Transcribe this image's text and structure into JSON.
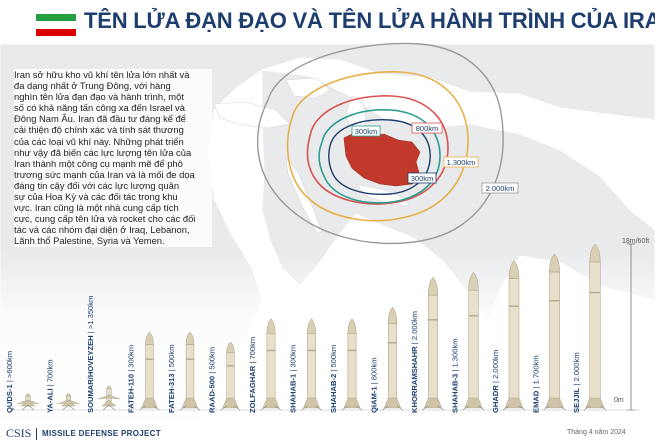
{
  "header": {
    "title": "TÊN LỬA ĐẠN ĐẠO VÀ TÊN LỬA HÀNH TRÌNH CỦA IRAN",
    "flag": [
      "#239f40",
      "#ffffff",
      "#da0000"
    ]
  },
  "intro_lines": [
    "Iran sở hữu kho vũ khí tên lửa lớn nhất và",
    "đa dạng nhất ở Trung Đông, với hàng",
    "nghìn tên lửa đạn đạo và hành trình, một",
    "số có khả năng tấn công xa đến Israel và",
    "Đông Nam Âu. Iran đã đầu tư đáng kể để",
    "cải thiện độ chính xác và tính sát thương",
    "của các loại vũ khí này. Những phát triển",
    "như vậy đã biến các lực lượng tên lửa của",
    "Iran thành một công cụ mạnh mẽ để phô",
    "trương sức mạnh của Iran và là mối đe dọa",
    "đáng tin cậy đối với các lực lượng quân",
    "sự của Hoa Kỳ và các đối tác trong khu",
    "vực. Iran cũng là một nhà cung cấp tích",
    "cực, cung cấp tên lửa và rocket cho các đối",
    "tác và các nhóm đại diện ở Iraq, Lebanon,",
    "Lãnh thổ Palestine, Syria và Yemen."
  ],
  "map": {
    "rings": [
      {
        "label": "300km",
        "color": "#2a9d8f"
      },
      {
        "label": "800km",
        "color": "#d9534f"
      },
      {
        "label": "1.300km",
        "color": "#e8b04a"
      },
      {
        "label": "2.000km",
        "color": "#9a9a9a"
      }
    ],
    "inner_label": "300km",
    "iran_color": "#c0392b"
  },
  "missiles": [
    {
      "name": "QUDS-1",
      "range": ">600km",
      "h": 0.055
    },
    {
      "name": "YA-ALI",
      "range": "700km",
      "h": 0.035
    },
    {
      "name": "SOUMAR/HOVEYZEH",
      "range": ">1.350km",
      "h": 0.13
    },
    {
      "name": "FATEH-110",
      "range": "300km",
      "h": 0.47
    },
    {
      "name": "FATEH-313",
      "range": "500km",
      "h": 0.47
    },
    {
      "name": "RAAD-500",
      "range": "500km",
      "h": 0.41
    },
    {
      "name": "ZOLFAGHAR",
      "range": "700km",
      "h": 0.55
    },
    {
      "name": "SHAHAB-1",
      "range": "300km",
      "h": 0.55
    },
    {
      "name": "SHAHAB-2",
      "range": "500km",
      "h": 0.55
    },
    {
      "name": "QIAM-1",
      "range": "800km",
      "h": 0.62
    },
    {
      "name": "KHORRAMSHAHR",
      "range": "2.000km",
      "h": 0.8
    },
    {
      "name": "SHAHAB-3",
      "range": "1.300km",
      "h": 0.83
    },
    {
      "name": "GHADR",
      "range": "2.000km",
      "h": 0.9
    },
    {
      "name": "EMAD",
      "range": "1.700km",
      "h": 0.94
    },
    {
      "name": "SEJJIL",
      "range": "2.000km",
      "h": 1.0
    }
  ],
  "scale": {
    "top_label": "18m/60ft",
    "bottom_label": "0m"
  },
  "footer": {
    "logo": "CSIS",
    "project": "MISSILE DEFENSE PROJECT",
    "date": "Tháng 4 năm 2024"
  }
}
